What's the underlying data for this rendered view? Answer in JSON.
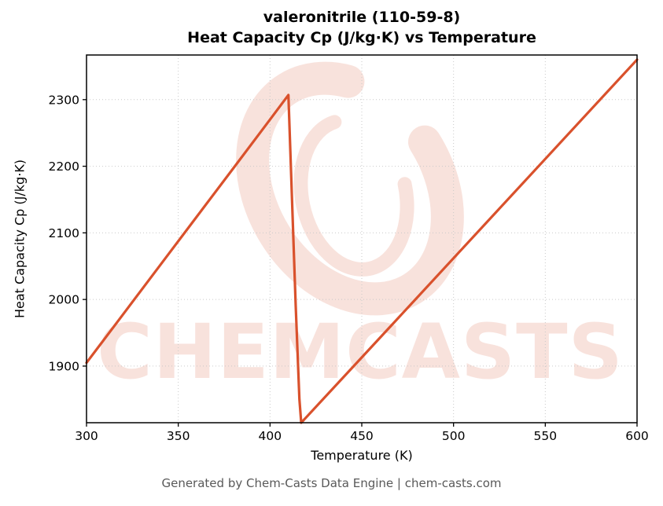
{
  "figure": {
    "title_line1": "valeronitrile (110-59-8)",
    "title_line2": "Heat Capacity Cp (J/kg·K) vs Temperature"
  },
  "watermark": {
    "text": "CHEMCASTS",
    "color": "#d9512c"
  },
  "footer": {
    "text": "Generated by Chem-Casts Data Engine | chem-casts.com"
  },
  "chart_data": {
    "type": "line",
    "title": "valeronitrile (110-59-8) — Heat Capacity Cp (J/kg·K) vs Temperature",
    "xlabel": "Temperature (K)",
    "ylabel": "Heat Capacity Cp (J/kg·K)",
    "xlim": [
      300,
      600
    ],
    "ylim": [
      1815,
      2367
    ],
    "xticks": [
      300,
      350,
      400,
      450,
      500,
      550,
      600
    ],
    "yticks": [
      1900,
      2000,
      2100,
      2200,
      2300
    ],
    "grid": true,
    "grid_color": "#c9c9c9",
    "line_color": "#d9512c",
    "line_width": 3.2,
    "legend": "none",
    "series": [
      {
        "name": "Heat Capacity Cp",
        "points": [
          [
            300,
            1905
          ],
          [
            320,
            1978
          ],
          [
            340,
            2051
          ],
          [
            360,
            2124
          ],
          [
            380,
            2197
          ],
          [
            400,
            2270
          ],
          [
            410,
            2307
          ],
          [
            412,
            2150
          ],
          [
            414,
            1990
          ],
          [
            416,
            1850
          ],
          [
            417,
            1815
          ],
          [
            419,
            1821
          ],
          [
            450,
            1913
          ],
          [
            500,
            2062
          ],
          [
            550,
            2211
          ],
          [
            600,
            2360
          ]
        ]
      }
    ]
  }
}
